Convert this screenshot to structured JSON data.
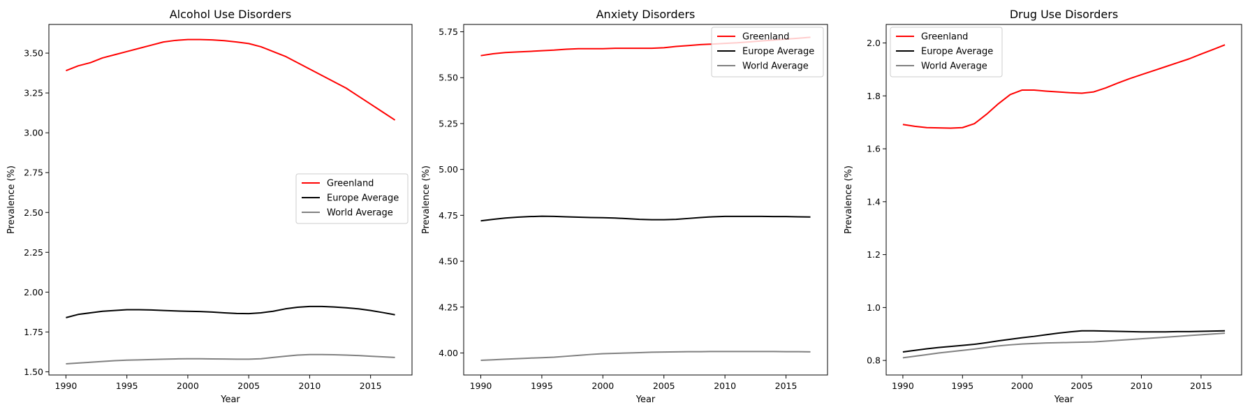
{
  "chart_data": [
    {
      "type": "line",
      "title": "Alcohol Use Disorders",
      "xlabel": "Year",
      "ylabel": "Prevalence (%)",
      "xlim": [
        1988.6,
        2018.4
      ],
      "ylim": [
        1.48,
        3.68
      ],
      "xticks": [
        1990,
        1995,
        2000,
        2005,
        2010,
        2015
      ],
      "yticks": [
        1.5,
        1.75,
        2.0,
        2.25,
        2.5,
        2.75,
        3.0,
        3.25,
        3.5
      ],
      "ytick_labels": [
        "1.50",
        "1.75",
        "2.00",
        "2.25",
        "2.50",
        "2.75",
        "3.00",
        "3.25",
        "3.50"
      ],
      "legend_position": "center-right",
      "grid": false,
      "x": [
        1990,
        1991,
        1992,
        1993,
        1994,
        1995,
        1996,
        1997,
        1998,
        1999,
        2000,
        2001,
        2002,
        2003,
        2004,
        2005,
        2006,
        2007,
        2008,
        2009,
        2010,
        2011,
        2012,
        2013,
        2014,
        2015,
        2016,
        2017
      ],
      "series": [
        {
          "name": "Greenland",
          "color": "#ff0000",
          "values": [
            3.39,
            3.42,
            3.44,
            3.47,
            3.49,
            3.51,
            3.53,
            3.55,
            3.57,
            3.58,
            3.585,
            3.585,
            3.583,
            3.578,
            3.57,
            3.56,
            3.54,
            3.51,
            3.48,
            3.44,
            3.4,
            3.36,
            3.32,
            3.28,
            3.23,
            3.18,
            3.13,
            3.08
          ]
        },
        {
          "name": "Europe Average",
          "color": "#000000",
          "values": [
            1.84,
            1.86,
            1.87,
            1.88,
            1.885,
            1.89,
            1.89,
            1.888,
            1.885,
            1.882,
            1.88,
            1.878,
            1.875,
            1.87,
            1.866,
            1.865,
            1.87,
            1.88,
            1.895,
            1.905,
            1.91,
            1.91,
            1.907,
            1.902,
            1.895,
            1.885,
            1.872,
            1.858
          ]
        },
        {
          "name": "World Average",
          "color": "#808080",
          "values": [
            1.55,
            1.555,
            1.56,
            1.565,
            1.57,
            1.573,
            1.575,
            1.577,
            1.579,
            1.581,
            1.582,
            1.582,
            1.581,
            1.58,
            1.579,
            1.579,
            1.582,
            1.59,
            1.598,
            1.605,
            1.608,
            1.608,
            1.607,
            1.605,
            1.602,
            1.598,
            1.594,
            1.59
          ]
        }
      ]
    },
    {
      "type": "line",
      "title": "Anxiety Disorders",
      "xlabel": "Year",
      "ylabel": "Prevalence (%)",
      "xlim": [
        1988.6,
        2018.4
      ],
      "ylim": [
        3.88,
        5.79
      ],
      "xticks": [
        1990,
        1995,
        2000,
        2005,
        2010,
        2015
      ],
      "yticks": [
        4.0,
        4.25,
        4.5,
        4.75,
        5.0,
        5.25,
        5.5,
        5.75
      ],
      "ytick_labels": [
        "4.00",
        "4.25",
        "4.50",
        "4.75",
        "5.00",
        "5.25",
        "5.50",
        "5.75"
      ],
      "legend_position": "top-right",
      "grid": false,
      "x": [
        1990,
        1991,
        1992,
        1993,
        1994,
        1995,
        1996,
        1997,
        1998,
        1999,
        2000,
        2001,
        2002,
        2003,
        2004,
        2005,
        2006,
        2007,
        2008,
        2009,
        2010,
        2011,
        2012,
        2013,
        2014,
        2015,
        2016,
        2017
      ],
      "series": [
        {
          "name": "Greenland",
          "color": "#ff0000",
          "values": [
            5.62,
            5.63,
            5.637,
            5.64,
            5.643,
            5.647,
            5.65,
            5.655,
            5.658,
            5.658,
            5.658,
            5.66,
            5.66,
            5.66,
            5.66,
            5.663,
            5.67,
            5.675,
            5.68,
            5.683,
            5.687,
            5.69,
            5.695,
            5.7,
            5.705,
            5.71,
            5.715,
            5.72
          ]
        },
        {
          "name": "Europe Average",
          "color": "#000000",
          "values": [
            4.72,
            4.728,
            4.735,
            4.74,
            4.743,
            4.745,
            4.744,
            4.742,
            4.74,
            4.738,
            4.737,
            4.735,
            4.732,
            4.728,
            4.726,
            4.726,
            4.728,
            4.733,
            4.738,
            4.742,
            4.744,
            4.744,
            4.744,
            4.744,
            4.743,
            4.743,
            4.742,
            4.741
          ]
        },
        {
          "name": "World Average",
          "color": "#808080",
          "values": [
            3.96,
            3.963,
            3.966,
            3.969,
            3.972,
            3.974,
            3.977,
            3.982,
            3.987,
            3.992,
            3.996,
            3.998,
            4.0,
            4.002,
            4.004,
            4.005,
            4.006,
            4.007,
            4.007,
            4.008,
            4.008,
            4.008,
            4.008,
            4.008,
            4.008,
            4.007,
            4.007,
            4.006
          ]
        }
      ]
    },
    {
      "type": "line",
      "title": "Drug Use Disorders",
      "xlabel": "Year",
      "ylabel": "Prevalence (%)",
      "xlim": [
        1988.6,
        2018.4
      ],
      "ylim": [
        0.745,
        2.07
      ],
      "xticks": [
        1990,
        1995,
        2000,
        2005,
        2010,
        2015
      ],
      "yticks": [
        0.8,
        1.0,
        1.2,
        1.4,
        1.6,
        1.8,
        2.0
      ],
      "ytick_labels": [
        "0.8",
        "1.0",
        "1.2",
        "1.4",
        "1.6",
        "1.8",
        "2.0"
      ],
      "legend_position": "top-left",
      "grid": false,
      "x": [
        1990,
        1991,
        1992,
        1993,
        1994,
        1995,
        1996,
        1997,
        1998,
        1999,
        2000,
        2001,
        2002,
        2003,
        2004,
        2005,
        2006,
        2007,
        2008,
        2009,
        2010,
        2011,
        2012,
        2013,
        2014,
        2015,
        2016,
        2017
      ],
      "series": [
        {
          "name": "Greenland",
          "color": "#ff0000",
          "values": [
            1.692,
            1.685,
            1.68,
            1.679,
            1.678,
            1.68,
            1.695,
            1.73,
            1.77,
            1.805,
            1.822,
            1.822,
            1.818,
            1.815,
            1.812,
            1.81,
            1.815,
            1.83,
            1.848,
            1.865,
            1.88,
            1.895,
            1.91,
            1.925,
            1.94,
            1.958,
            1.975,
            1.993
          ]
        },
        {
          "name": "Europe Average",
          "color": "#000000",
          "values": [
            0.832,
            0.838,
            0.844,
            0.849,
            0.853,
            0.857,
            0.861,
            0.867,
            0.874,
            0.88,
            0.886,
            0.891,
            0.897,
            0.903,
            0.908,
            0.912,
            0.912,
            0.911,
            0.91,
            0.909,
            0.908,
            0.908,
            0.908,
            0.909,
            0.909,
            0.91,
            0.911,
            0.912
          ]
        },
        {
          "name": "World Average",
          "color": "#808080",
          "values": [
            0.81,
            0.816,
            0.822,
            0.828,
            0.833,
            0.838,
            0.843,
            0.849,
            0.855,
            0.859,
            0.862,
            0.864,
            0.866,
            0.867,
            0.868,
            0.869,
            0.87,
            0.873,
            0.876,
            0.879,
            0.882,
            0.885,
            0.888,
            0.891,
            0.894,
            0.897,
            0.9,
            0.903
          ]
        }
      ]
    }
  ]
}
